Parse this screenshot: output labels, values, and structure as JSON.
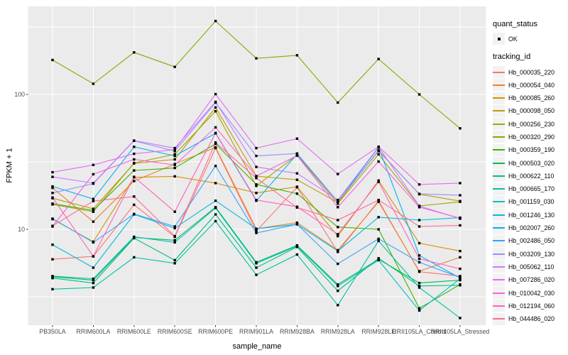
{
  "chart_data": {
    "type": "line",
    "title": "",
    "xlabel": "sample_name",
    "ylabel": "FPKM + 1",
    "y_scale": "log10",
    "y_ticks": [
      {
        "label": "100",
        "value": 100
      },
      {
        "label": "10",
        "value": 10
      }
    ],
    "y_minor_ticks": [
      3.162,
      31.623,
      316.228
    ],
    "ylim": [
      1.8,
      380
    ],
    "grid": true,
    "legend_position": "right",
    "categories": [
      "PB350LA",
      "RRIM600LA",
      "RRIM600LE",
      "RRIM600SE",
      "RRIM600PE",
      "RRIM901LA",
      "RRIM928BA",
      "RRIM928LA",
      "RRIM928LE",
      "RRII105LA_Control",
      "RRII105LA_Stressed"
    ],
    "series": [
      {
        "tracking_id": "Hb_000035_220",
        "color": "#F8766D",
        "values": [
          6.0,
          6.3,
          15.2,
          8.8,
          40.0,
          9.7,
          20.5,
          6.8,
          16.3,
          4.85,
          4.5
        ]
      },
      {
        "tracking_id": "Hb_000054_040",
        "color": "#EA8331",
        "values": [
          20.3,
          11.4,
          22.8,
          30.5,
          40.5,
          10.1,
          11.2,
          7.0,
          16.0,
          4.9,
          6.2
        ]
      },
      {
        "tracking_id": "Hb_000085_260",
        "color": "#D89000",
        "values": [
          11.9,
          8.1,
          24.3,
          24.7,
          22.0,
          18.6,
          20.7,
          8.9,
          23.0,
          7.9,
          6.9
        ]
      },
      {
        "tracking_id": "Hb_000098_050",
        "color": "#C09B00",
        "values": [
          17.0,
          14.2,
          30.8,
          33.0,
          80.0,
          24.8,
          23.3,
          15.8,
          38.5,
          18.2,
          16.2
        ]
      },
      {
        "tracking_id": "Hb_000256_230",
        "color": "#A3A500",
        "values": [
          15.3,
          13.5,
          31.0,
          36.0,
          75.0,
          21.0,
          35.5,
          15.5,
          36.0,
          14.9,
          16.0
        ]
      },
      {
        "tracking_id": "Hb_000320_290",
        "color": "#7CAE00",
        "values": [
          180,
          120,
          205,
          160,
          350,
          185,
          195,
          87,
          183,
          100,
          56
        ]
      },
      {
        "tracking_id": "Hb_000359_190",
        "color": "#39B600",
        "values": [
          15.5,
          13.8,
          27.3,
          28.5,
          43.0,
          21.5,
          18.4,
          10.4,
          10.0,
          2.6,
          3.9
        ]
      },
      {
        "tracking_id": "Hb_000503_020",
        "color": "#00BB4E",
        "values": [
          4.45,
          4.2,
          8.7,
          8.3,
          14.6,
          5.7,
          7.6,
          3.9,
          6.0,
          4.0,
          4.2
        ]
      },
      {
        "tracking_id": "Hb_000622_110",
        "color": "#00BF7D",
        "values": [
          4.35,
          4.0,
          8.6,
          5.9,
          12.9,
          5.2,
          7.4,
          3.5,
          6.1,
          3.8,
          3.85
        ]
      },
      {
        "tracking_id": "Hb_000665_170",
        "color": "#00C1A3",
        "values": [
          3.6,
          3.7,
          6.2,
          5.6,
          11.5,
          4.6,
          6.5,
          2.74,
          8.2,
          3.7,
          2.2
        ]
      },
      {
        "tracking_id": "Hb_001159_030",
        "color": "#00BFC4",
        "values": [
          4.5,
          4.3,
          8.8,
          8.0,
          14.4,
          5.6,
          7.5,
          3.8,
          5.9,
          2.5,
          4.3
        ]
      },
      {
        "tracking_id": "Hb_001246_130",
        "color": "#00BAE0",
        "values": [
          7.7,
          5.2,
          12.9,
          10.2,
          16.3,
          10.1,
          10.9,
          6.9,
          12.3,
          11.7,
          12.2
        ]
      },
      {
        "tracking_id": "Hb_002007_260",
        "color": "#00B0F6",
        "values": [
          20.8,
          16.8,
          40.9,
          35.0,
          51.5,
          16.3,
          36.0,
          16.0,
          40.5,
          6.4,
          4.35
        ]
      },
      {
        "tracking_id": "Hb_002486_050",
        "color": "#35A2FF",
        "values": [
          12.0,
          8.0,
          13.0,
          10.5,
          29.5,
          9.4,
          10.9,
          5.55,
          8.5,
          5.7,
          4.4
        ]
      },
      {
        "tracking_id": "Hb_003209_130",
        "color": "#9590FF",
        "values": [
          18.6,
          21.8,
          45.3,
          38.0,
          87.0,
          35.0,
          36.5,
          16.1,
          38.0,
          18.3,
          17.9
        ]
      },
      {
        "tracking_id": "Hb_005062_110",
        "color": "#C77CFF",
        "values": [
          24.5,
          22.0,
          45.5,
          40.0,
          88.0,
          29.0,
          26.0,
          16.5,
          40.8,
          14.9,
          12.0
        ]
      },
      {
        "tracking_id": "Hb_007286_020",
        "color": "#E76BF3",
        "values": [
          26.5,
          30.0,
          36.3,
          39.0,
          100.5,
          40.0,
          47.0,
          25.7,
          41.0,
          21.5,
          22.0
        ]
      },
      {
        "tracking_id": "Hb_010042_030",
        "color": "#FA62DB",
        "values": [
          10.5,
          25.6,
          33.0,
          30.0,
          57.0,
          24.8,
          35.2,
          14.6,
          31.8,
          14.6,
          12.1
        ]
      },
      {
        "tracking_id": "Hb_012194_060",
        "color": "#FF62BC",
        "values": [
          17.2,
          6.3,
          24.5,
          13.5,
          51.8,
          16.5,
          14.7,
          9.2,
          22.5,
          6.05,
          5.1
        ]
      },
      {
        "tracking_id": "Hb_044486_020",
        "color": "#FF6A98",
        "values": [
          10.6,
          16.2,
          17.5,
          8.9,
          44.0,
          24.0,
          14.5,
          11.7,
          16.5,
          10.5,
          10.7
        ]
      }
    ],
    "legend_quant": {
      "title": "quant_status",
      "entries": [
        {
          "label": "OK",
          "symbol": "black-point"
        }
      ]
    },
    "legend_tracking": {
      "title": "tracking_id"
    },
    "style": {
      "panel_bg": "#EBEBEB",
      "grid_color": "#FFFFFF",
      "key_bg": "#F2F2F2",
      "tick_color": "#333333",
      "tick_label_color": "#4D4D4D",
      "marker_color": "#000000"
    }
  }
}
